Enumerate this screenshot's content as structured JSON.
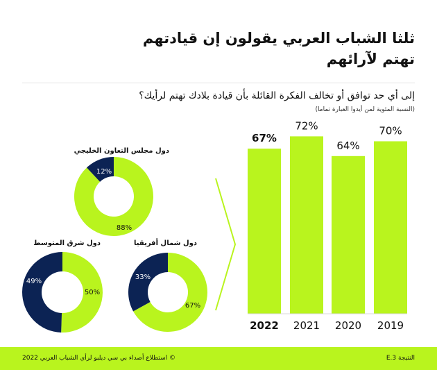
{
  "header": {
    "title_line1": "ثلثا الشباب العربي يقولون إن قيادتهم",
    "title_line2": "تهتم لآرائهم",
    "question": "إلى أي حد توافق أو تخالف الفكرة القائلة بأن قيادة بلادك تهتم لرأيك؟",
    "note": "(النسبة المئوية لمن أيدوا العبارة تماما)"
  },
  "footer": {
    "right": "النتيجة 3.E",
    "left": "© استطلاع أصداء بي سي ديلبو لرأي الشباب العربي 2022"
  },
  "colors": {
    "lime": "#b9f41e",
    "navy": "#0c2354"
  },
  "chart_data": [
    {
      "type": "pie",
      "title": "دول مجلس التعاون الخليجي",
      "labels": [
        "",
        ""
      ],
      "values": [
        88,
        12
      ],
      "value_labels": [
        "88%",
        "12%"
      ],
      "colors": [
        "#b9f41e",
        "#0c2354"
      ]
    },
    {
      "type": "pie",
      "title": "دول شرق المتوسط",
      "labels": [
        "",
        ""
      ],
      "values": [
        50,
        49
      ],
      "value_labels": [
        "50%",
        "49%"
      ],
      "colors": [
        "#b9f41e",
        "#0c2354"
      ]
    },
    {
      "type": "pie",
      "title": "دول شمال أفريقيا",
      "labels": [
        "",
        ""
      ],
      "values": [
        67,
        33
      ],
      "value_labels": [
        "67%",
        "33%"
      ],
      "colors": [
        "#b9f41e",
        "#0c2354"
      ]
    },
    {
      "type": "bar",
      "categories": [
        "2022",
        "2021",
        "2020",
        "2019"
      ],
      "values": [
        67,
        72,
        64,
        70
      ],
      "value_labels": [
        "67%",
        "72%",
        "64%",
        "70%"
      ],
      "highlight": "2022",
      "ylim": [
        0,
        80
      ],
      "xlabel": "",
      "ylabel": "",
      "grid": false
    }
  ]
}
